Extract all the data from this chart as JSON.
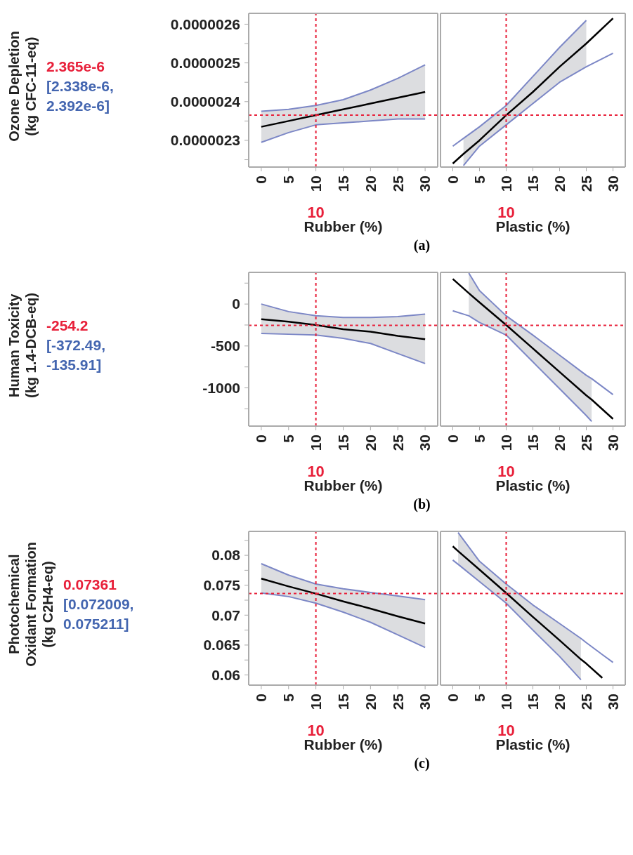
{
  "chart_data": [
    {
      "type": "line",
      "ylabel": "Ozone Depletion\n(kg CFC-11-eq)",
      "xlabel": "Rubber (%)",
      "annotations": [
        "2.365e-6",
        "[2.338e-6,\n2.392e-6]",
        "(a)"
      ],
      "x": [
        0,
        5,
        10,
        15,
        20,
        25,
        30
      ],
      "xlim": [
        -2.3,
        32.3
      ],
      "xticks": [
        0,
        5,
        10,
        15,
        20,
        25,
        30
      ],
      "ylim": [
        2.231e-06,
        2.628e-06
      ],
      "yticks": [
        {
          "value": 2.3e-06,
          "label": "0.0000023"
        },
        {
          "value": 2.4e-06,
          "label": "0.0000024"
        },
        {
          "value": 2.5e-06,
          "label": "0.0000025"
        },
        {
          "value": 2.6e-06,
          "label": "0.0000026"
        },
        {
          "value": 2.25e-06,
          "label": null
        },
        {
          "value": 2.35e-06,
          "label": null
        },
        {
          "value": 2.45e-06,
          "label": null
        },
        {
          "value": 2.55e-06,
          "label": null
        }
      ],
      "series": [
        {
          "color": "#000000",
          "values": [
            2.335e-06,
            2.35e-06,
            2.365e-06,
            2.38e-06,
            2.395e-06,
            2.41e-06,
            2.425e-06
          ],
          "lower": [
            2.295e-06,
            2.32e-06,
            2.34e-06,
            2.345e-06,
            2.35e-06,
            2.355e-06,
            2.355e-06
          ],
          "upper": [
            2.375e-06,
            2.38e-06,
            2.39e-06,
            2.405e-06,
            2.43e-06,
            2.46e-06,
            2.495e-06
          ]
        },
        {
          "color": "#7c87c6",
          "values": [
            2.295e-06,
            2.32e-06,
            2.34e-06,
            2.345e-06,
            2.35e-06,
            2.355e-06,
            2.355e-06
          ]
        },
        {
          "color": "#7c87c6",
          "values": [
            2.375e-06,
            2.38e-06,
            2.39e-06,
            2.405e-06,
            2.43e-06,
            2.46e-06,
            2.495e-06
          ]
        }
      ],
      "ref_lines": [
        {
          "axis": "x",
          "value": 10,
          "label": "10",
          "color": "#e8203a",
          "line_style": "dashed"
        },
        {
          "axis": "y",
          "value": 2.365e-06,
          "color": "#e8203a",
          "line_style": "dashed"
        }
      ]
    },
    {
      "type": "line",
      "xlabel": "Plastic (%)",
      "tick_labels": "x",
      "x": [
        0,
        2,
        5,
        10,
        15,
        20,
        25,
        30
      ],
      "xlim": [
        -2.3,
        32.3
      ],
      "xticks": [
        0,
        5,
        10,
        15,
        20,
        25,
        30
      ],
      "ylim": [
        2.231e-06,
        2.628e-06
      ],
      "series": [
        {
          "color": "#000000",
          "values": [
            2.24e-06,
            2.265e-06,
            2.3e-06,
            2.365e-06,
            2.425e-06,
            2.49e-06,
            2.55e-06,
            2.615e-06
          ],
          "lower": [
            null,
            2.235e-06,
            2.285e-06,
            2.34e-06,
            2.395e-06,
            2.45e-06,
            2.49e-06,
            null
          ],
          "upper": [
            null,
            2.305e-06,
            2.335e-06,
            2.39e-06,
            2.465e-06,
            2.54e-06,
            2.61e-06,
            null
          ]
        },
        {
          "color": "#7c87c6",
          "values": [
            null,
            2.235e-06,
            2.285e-06,
            2.34e-06,
            2.395e-06,
            2.45e-06,
            2.49e-06,
            2.525e-06
          ]
        },
        {
          "color": "#7c87c6",
          "values": [
            2.285e-06,
            2.305e-06,
            2.335e-06,
            2.39e-06,
            2.465e-06,
            2.54e-06,
            2.61e-06,
            null
          ]
        }
      ],
      "ref_lines": [
        {
          "axis": "x",
          "value": 10,
          "label": "10",
          "color": "#e8203a",
          "line_style": "dashed"
        },
        {
          "axis": "y",
          "value": 2.365e-06,
          "color": "#e8203a",
          "line_style": "dashed"
        }
      ]
    },
    {
      "type": "line",
      "ylabel": "Human Toxicity\n(kg 1.4-DCB-eq)",
      "xlabel": "Rubber (%)",
      "annotations": [
        "-254.2",
        "[-372.49,\n-135.91]",
        "(b)"
      ],
      "x": [
        0,
        5,
        10,
        15,
        20,
        25,
        30
      ],
      "xlim": [
        -2.3,
        32.3
      ],
      "xticks": [
        0,
        5,
        10,
        15,
        20,
        25,
        30
      ],
      "ylim": [
        -1456,
        378
      ],
      "yticks": [
        -1000,
        -500,
        0,
        {
          "value": -1250,
          "label": null
        },
        {
          "value": -750,
          "label": null
        },
        {
          "value": -250,
          "label": null
        },
        {
          "value": 250,
          "label": null
        }
      ],
      "series": [
        {
          "color": "#000000",
          "values": [
            -180,
            -210,
            -250,
            -300,
            -330,
            -380,
            -420
          ],
          "lower": [
            -350,
            -360,
            -370,
            -410,
            -470,
            -590,
            -710
          ],
          "upper": [
            0,
            -90,
            -140,
            -160,
            -160,
            -150,
            -120
          ]
        },
        {
          "color": "#7c87c6",
          "values": [
            -350,
            -360,
            -370,
            -410,
            -470,
            -590,
            -710
          ]
        },
        {
          "color": "#7c87c6",
          "values": [
            0,
            -90,
            -140,
            -160,
            -160,
            -150,
            -120
          ]
        }
      ],
      "ref_lines": [
        {
          "axis": "x",
          "value": 10,
          "label": "10",
          "color": "#e8203a",
          "line_style": "dashed"
        },
        {
          "axis": "y",
          "value": -254.2,
          "color": "#e8203a",
          "line_style": "dashed"
        }
      ]
    },
    {
      "type": "line",
      "xlabel": "Plastic (%)",
      "tick_labels": "x",
      "x": [
        0,
        3,
        5,
        10,
        15,
        20,
        25,
        26,
        30
      ],
      "xlim": [
        -2.3,
        32.3
      ],
      "xticks": [
        0,
        5,
        10,
        15,
        20,
        25,
        30
      ],
      "ylim": [
        -1456,
        378
      ],
      "series": [
        {
          "color": "#000000",
          "values": [
            300,
            130,
            20,
            -250,
            -530,
            -810,
            -1090,
            -1140,
            -1370
          ],
          "lower": [
            null,
            -140,
            -220,
            -370,
            -690,
            -1010,
            -1330,
            -1400,
            null
          ],
          "upper": [
            null,
            370,
            160,
            -140,
            -370,
            -610,
            -850,
            -890,
            null
          ]
        },
        {
          "color": "#7c87c6",
          "values": [
            -80,
            -140,
            -220,
            -370,
            -690,
            -1010,
            -1330,
            -1400,
            null
          ]
        },
        {
          "color": "#7c87c6",
          "values": [
            null,
            370,
            160,
            -140,
            -370,
            -610,
            -850,
            -890,
            -1080
          ]
        }
      ],
      "ref_lines": [
        {
          "axis": "x",
          "value": 10,
          "label": "10",
          "color": "#e8203a",
          "line_style": "dashed"
        },
        {
          "axis": "y",
          "value": -254.2,
          "color": "#e8203a",
          "line_style": "dashed"
        }
      ]
    },
    {
      "type": "line",
      "ylabel": "Photochemical\nOxidant Formation\n(kg C2H4-eq)",
      "xlabel": "Rubber (%)",
      "annotations": [
        "0.07361",
        "[0.072009,\n0.075211]",
        "(c)"
      ],
      "x": [
        0,
        5,
        10,
        15,
        20,
        25,
        30
      ],
      "xlim": [
        -2.3,
        32.3
      ],
      "xticks": [
        0,
        5,
        10,
        15,
        20,
        25,
        30
      ],
      "ylim": [
        0.0583,
        0.084
      ],
      "yticks": [
        0.06,
        0.065,
        0.07,
        0.075,
        0.08,
        {
          "value": 0.0625,
          "label": null
        },
        {
          "value": 0.0675,
          "label": null
        },
        {
          "value": 0.0725,
          "label": null
        },
        {
          "value": 0.0775,
          "label": null
        },
        {
          "value": 0.0825,
          "label": null
        }
      ],
      "series": [
        {
          "color": "#000000",
          "values": [
            0.0761,
            0.0748,
            0.0736,
            0.0723,
            0.0711,
            0.0698,
            0.0686
          ],
          "lower": [
            0.0737,
            0.0731,
            0.072,
            0.0705,
            0.0688,
            0.0667,
            0.0646
          ],
          "upper": [
            0.0786,
            0.0767,
            0.0752,
            0.0744,
            0.0738,
            0.0732,
            0.0726
          ]
        },
        {
          "color": "#7c87c6",
          "values": [
            0.0737,
            0.0731,
            0.072,
            0.0705,
            0.0688,
            0.0667,
            0.0646
          ]
        },
        {
          "color": "#7c87c6",
          "values": [
            0.0786,
            0.0767,
            0.0752,
            0.0744,
            0.0738,
            0.0732,
            0.0726
          ]
        }
      ],
      "ref_lines": [
        {
          "axis": "x",
          "value": 10,
          "label": "10",
          "color": "#e8203a",
          "line_style": "dashed"
        },
        {
          "axis": "y",
          "value": 0.07361,
          "color": "#e8203a",
          "line_style": "dashed"
        }
      ]
    },
    {
      "type": "line",
      "xlabel": "Plastic (%)",
      "tick_labels": "x",
      "x": [
        0,
        1,
        5,
        10,
        15,
        20,
        24,
        25,
        28,
        30
      ],
      "xlim": [
        -2.3,
        32.3
      ],
      "xticks": [
        0,
        5,
        10,
        15,
        20,
        25,
        30
      ],
      "ylim": [
        0.0583,
        0.084
      ],
      "series": [
        {
          "color": "#000000",
          "values": [
            0.0815,
            0.0807,
            0.0776,
            0.0737,
            0.0697,
            0.0658,
            0.0626,
            0.0619,
            0.0595,
            null
          ],
          "lower": [
            null,
            0.0785,
            0.0756,
            0.072,
            0.0675,
            0.0631,
            0.0592,
            null,
            null,
            null
          ],
          "upper": [
            null,
            0.0838,
            0.079,
            0.0752,
            0.0717,
            0.0686,
            0.0661,
            null,
            null,
            null
          ]
        },
        {
          "color": "#7c87c6",
          "values": [
            0.0792,
            0.0785,
            0.0756,
            0.072,
            0.0675,
            0.0631,
            0.0592,
            null,
            null,
            null
          ]
        },
        {
          "color": "#7c87c6",
          "values": [
            null,
            0.0838,
            0.079,
            0.0752,
            0.0717,
            0.0686,
            0.0661,
            0.0654,
            0.0634,
            0.0621
          ]
        }
      ],
      "ref_lines": [
        {
          "axis": "x",
          "value": 10,
          "label": "10",
          "color": "#e8203a",
          "line_style": "dashed"
        },
        {
          "axis": "y",
          "value": 0.07361,
          "color": "#e8203a",
          "line_style": "dashed"
        }
      ]
    }
  ]
}
